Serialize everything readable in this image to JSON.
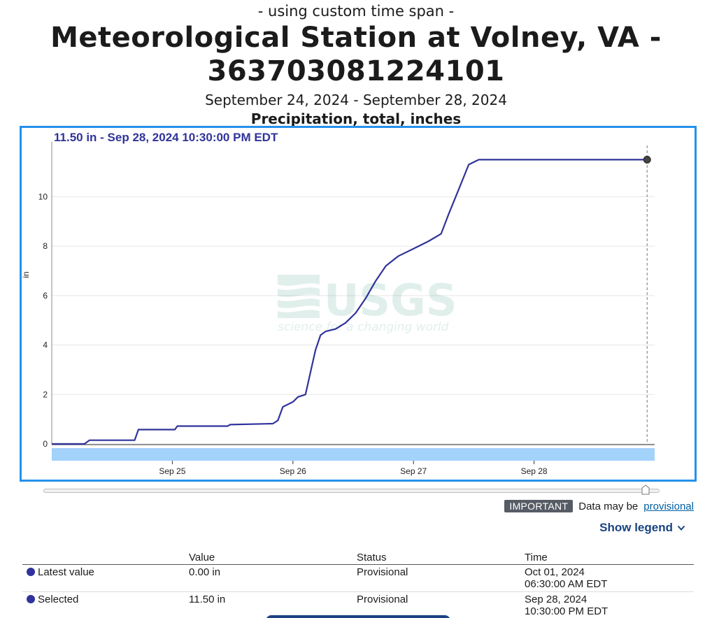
{
  "header": {
    "time_span_note": "- using custom time span -",
    "title": "Meteorological Station at Volney, VA - 363703081224101",
    "date_range": "September 24, 2024 - September 28, 2024",
    "parameter": "Precipitation, total, inches"
  },
  "tooltip": {
    "text": "11.50 in - Sep 28, 2024 10:30:00 PM EDT"
  },
  "watermark": {
    "logo": "USGS",
    "tagline": "science for a changing world"
  },
  "colors": {
    "series": "#31339a",
    "frame": "#2491eb",
    "band": "#a3d2fb",
    "tooltip_text": "#31339a"
  },
  "chart_data": {
    "type": "line",
    "title": "",
    "ylabel": "in",
    "xlabel": "",
    "x_ticks": [
      "Sep 25",
      "Sep 26",
      "Sep 27",
      "Sep 28"
    ],
    "y_ticks": [
      0,
      2,
      4,
      6,
      8,
      10
    ],
    "ylim": [
      0,
      12.5
    ],
    "xlim": [
      "2024-09-24T00:00",
      "2024-09-29T00:00"
    ],
    "grid": true,
    "series": [
      {
        "points": [
          [
            "2024-09-24T00:00",
            0.0
          ],
          [
            "2024-09-24T06:30",
            0.0
          ],
          [
            "2024-09-24T07:30",
            0.15
          ],
          [
            "2024-09-24T16:30",
            0.15
          ],
          [
            "2024-09-24T17:15",
            0.58
          ],
          [
            "2024-09-25T00:30",
            0.58
          ],
          [
            "2024-09-25T01:00",
            0.72
          ],
          [
            "2024-09-25T11:00",
            0.72
          ],
          [
            "2024-09-25T11:30",
            0.78
          ],
          [
            "2024-09-25T20:00",
            0.82
          ],
          [
            "2024-09-25T21:00",
            0.95
          ],
          [
            "2024-09-25T22:00",
            1.5
          ],
          [
            "2024-09-26T00:00",
            1.7
          ],
          [
            "2024-09-26T01:00",
            1.9
          ],
          [
            "2024-09-26T02:30",
            2.0
          ],
          [
            "2024-09-26T03:30",
            2.9
          ],
          [
            "2024-09-26T04:30",
            3.8
          ],
          [
            "2024-09-26T05:30",
            4.4
          ],
          [
            "2024-09-26T06:30",
            4.55
          ],
          [
            "2024-09-26T08:30",
            4.65
          ],
          [
            "2024-09-26T10:30",
            4.9
          ],
          [
            "2024-09-26T12:30",
            5.3
          ],
          [
            "2024-09-26T14:30",
            5.9
          ],
          [
            "2024-09-26T16:30",
            6.6
          ],
          [
            "2024-09-26T18:30",
            7.2
          ],
          [
            "2024-09-26T21:00",
            7.6
          ],
          [
            "2024-09-27T00:00",
            7.9
          ],
          [
            "2024-09-27T03:00",
            8.2
          ],
          [
            "2024-09-27T05:30",
            8.5
          ],
          [
            "2024-09-27T07:00",
            9.3
          ],
          [
            "2024-09-27T09:00",
            10.3
          ],
          [
            "2024-09-27T11:00",
            11.3
          ],
          [
            "2024-09-27T13:00",
            11.5
          ],
          [
            "2024-09-28T22:30",
            11.5
          ]
        ]
      }
    ],
    "selected_point": [
      "2024-09-28T22:30",
      11.5
    ]
  },
  "notice": {
    "badge": "IMPORTANT",
    "text": "Data may be",
    "link": "provisional"
  },
  "legend_toggle": "Show legend",
  "table": {
    "headers": [
      "",
      "Value",
      "Status",
      "Time"
    ],
    "rows": [
      {
        "label": "Latest value",
        "value": "0.00 in",
        "status": "Provisional",
        "time_line1": "Oct 01, 2024",
        "time_line2": "06:30:00 AM EDT"
      },
      {
        "label": "Selected",
        "value": "11.50 in",
        "status": "Provisional",
        "time_line1": "Sep 28, 2024",
        "time_line2": "10:30:00 PM EDT"
      }
    ]
  }
}
